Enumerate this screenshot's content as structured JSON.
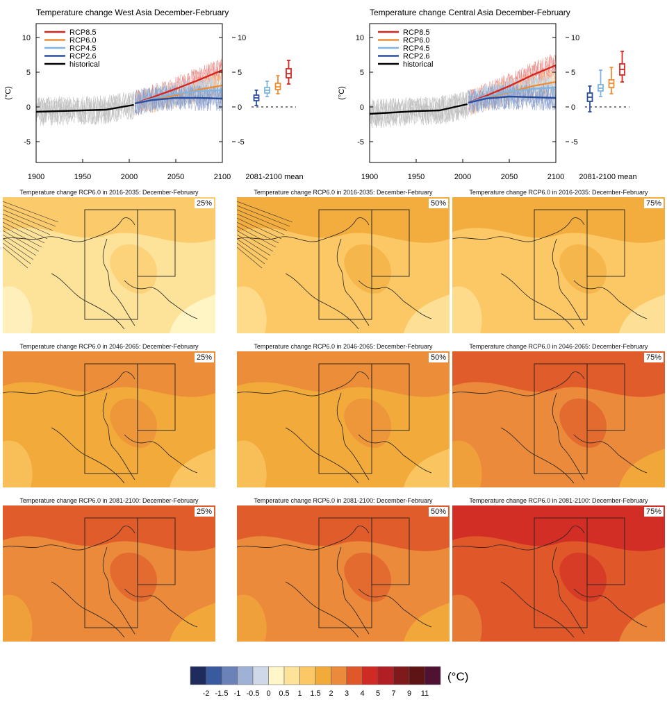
{
  "chart_data": [
    {
      "type": "line",
      "title": "Temperature change West Asia December-February",
      "ylabel": "(°C)",
      "xlim": [
        1900,
        2100
      ],
      "ylim": [
        -8,
        12
      ],
      "x_ticks": [
        1900,
        1950,
        2000,
        2050,
        2100
      ],
      "y_ticks": [
        -5,
        0,
        5,
        10
      ],
      "legend_position": "top-left",
      "series": [
        {
          "name": "RCP8.5",
          "color": "#d7261e",
          "x": [
            2006,
            2025,
            2050,
            2075,
            2100
          ],
          "values": [
            0.5,
            1.4,
            2.6,
            3.9,
            5.3
          ]
        },
        {
          "name": "RCP6.0",
          "color": "#ef8c31",
          "x": [
            2006,
            2025,
            2050,
            2075,
            2100
          ],
          "values": [
            0.5,
            1.0,
            1.7,
            2.5,
            3.1
          ]
        },
        {
          "name": "RCP4.5",
          "color": "#7fb5e0",
          "x": [
            2006,
            2025,
            2050,
            2075,
            2100
          ],
          "values": [
            0.5,
            1.2,
            1.9,
            2.3,
            2.4
          ]
        },
        {
          "name": "RCP2.6",
          "color": "#2a4d9f",
          "x": [
            2006,
            2025,
            2050,
            2075,
            2100
          ],
          "values": [
            0.5,
            1.0,
            1.3,
            1.3,
            1.2
          ]
        },
        {
          "name": "historical",
          "color": "#000000",
          "x": [
            1900,
            1925,
            1950,
            1975,
            2005
          ],
          "values": [
            -0.7,
            -0.6,
            -0.5,
            -0.4,
            0.3
          ]
        }
      ],
      "boxplot_label": "2081-2100 mean",
      "boxplots": [
        {
          "series": "RCP2.6",
          "color": "#2a4d9f",
          "min": 0.2,
          "q1": 0.9,
          "median": 1.3,
          "q3": 1.7,
          "max": 2.4
        },
        {
          "series": "RCP4.5",
          "color": "#7fb5e0",
          "min": 1.5,
          "q1": 2.0,
          "median": 2.4,
          "q3": 2.8,
          "max": 3.7
        },
        {
          "series": "RCP6.0",
          "color": "#ef8c31",
          "min": 1.9,
          "q1": 2.5,
          "median": 2.9,
          "q3": 3.4,
          "max": 4.5
        },
        {
          "series": "RCP8.5",
          "color": "#d7261e",
          "min": 3.3,
          "q1": 4.2,
          "median": 4.8,
          "q3": 5.5,
          "max": 6.7
        }
      ]
    },
    {
      "type": "line",
      "title": "Temperature change Central Asia December-February",
      "ylabel": "(°C)",
      "xlim": [
        1900,
        2100
      ],
      "ylim": [
        -8,
        12
      ],
      "x_ticks": [
        1900,
        1950,
        2000,
        2050,
        2100
      ],
      "y_ticks": [
        -5,
        0,
        5,
        10
      ],
      "legend_position": "top-left",
      "series": [
        {
          "name": "RCP8.5",
          "color": "#d7261e",
          "x": [
            2006,
            2025,
            2050,
            2075,
            2100
          ],
          "values": [
            0.6,
            1.6,
            3.0,
            4.6,
            6.0
          ]
        },
        {
          "name": "RCP6.0",
          "color": "#ef8c31",
          "x": [
            2006,
            2025,
            2050,
            2075,
            2100
          ],
          "values": [
            0.6,
            1.3,
            2.1,
            3.0,
            3.6
          ]
        },
        {
          "name": "RCP4.5",
          "color": "#7fb5e0",
          "x": [
            2006,
            2025,
            2050,
            2075,
            2100
          ],
          "values": [
            0.6,
            1.4,
            2.2,
            2.6,
            2.8
          ]
        },
        {
          "name": "RCP2.6",
          "color": "#2a4d9f",
          "x": [
            2006,
            2025,
            2050,
            2075,
            2100
          ],
          "values": [
            0.6,
            1.2,
            1.5,
            1.4,
            1.3
          ]
        },
        {
          "name": "historical",
          "color": "#000000",
          "x": [
            1900,
            1925,
            1950,
            1975,
            2005
          ],
          "values": [
            -1.0,
            -0.8,
            -0.6,
            -0.5,
            0.4
          ]
        }
      ],
      "boxplot_label": "2081-2100 mean",
      "boxplots": [
        {
          "series": "RCP2.6",
          "color": "#2a4d9f",
          "min": -0.7,
          "q1": 0.8,
          "median": 1.4,
          "q3": 2.0,
          "max": 3.0
        },
        {
          "series": "RCP4.5",
          "color": "#7fb5e0",
          "min": 1.5,
          "q1": 2.3,
          "median": 2.7,
          "q3": 3.2,
          "max": 5.3
        },
        {
          "series": "RCP6.0",
          "color": "#ef8c31",
          "min": 1.9,
          "q1": 2.8,
          "median": 3.4,
          "q3": 3.9,
          "max": 5.7
        },
        {
          "series": "RCP8.5",
          "color": "#d7261e",
          "min": 3.6,
          "q1": 4.6,
          "median": 5.4,
          "q3": 6.2,
          "max": 8.0
        }
      ]
    },
    {
      "type": "heatmap",
      "panels": [
        {
          "title": "Temperature change RCP6.0 in 2016-2035: December-February",
          "percentile": "25%",
          "base_level": 0.5,
          "hatched": true
        },
        {
          "title": "Temperature change RCP6.0 in 2016-2035: December-February",
          "percentile": "50%",
          "base_level": 1,
          "hatched": true
        },
        {
          "title": "Temperature change RCP6.0 in 2016-2035: December-February",
          "percentile": "75%",
          "base_level": 1,
          "hatched": false
        },
        {
          "title": "Temperature change RCP6.0 in 2046-2065: December-February",
          "percentile": "25%",
          "base_level": 1.5,
          "hatched": false
        },
        {
          "title": "Temperature change RCP6.0 in 2046-2065: December-February",
          "percentile": "50%",
          "base_level": 1.5,
          "hatched": false
        },
        {
          "title": "Temperature change RCP6.0 in 2046-2065: December-February",
          "percentile": "75%",
          "base_level": 2,
          "hatched": false
        },
        {
          "title": "Temperature change RCP6.0 in 2081-2100: December-February",
          "percentile": "25%",
          "base_level": 2,
          "hatched": false
        },
        {
          "title": "Temperature change RCP6.0 in 2081-2100: December-February",
          "percentile": "50%",
          "base_level": 2,
          "hatched": false
        },
        {
          "title": "Temperature change RCP6.0 in 2081-2100: December-February",
          "percentile": "75%",
          "base_level": 3,
          "hatched": false
        }
      ],
      "colorbar": {
        "unit": "(°C)",
        "tick_labels": [
          "-2",
          "-1.5",
          "-1",
          "-0.5",
          "0",
          "0.5",
          "1",
          "1.5",
          "2",
          "3",
          "4",
          "5",
          "7",
          "9",
          "11"
        ],
        "colors": [
          "#1e2b5c",
          "#3a5aa0",
          "#6b82b8",
          "#9fb1d4",
          "#cfd8e8",
          "#fff7c9",
          "#fde29a",
          "#fbc865",
          "#f2aa3a",
          "#ea8a3a",
          "#e0572a",
          "#d02a25",
          "#b01f24",
          "#7e1a1c",
          "#5e1414",
          "#4f1233"
        ]
      }
    }
  ]
}
